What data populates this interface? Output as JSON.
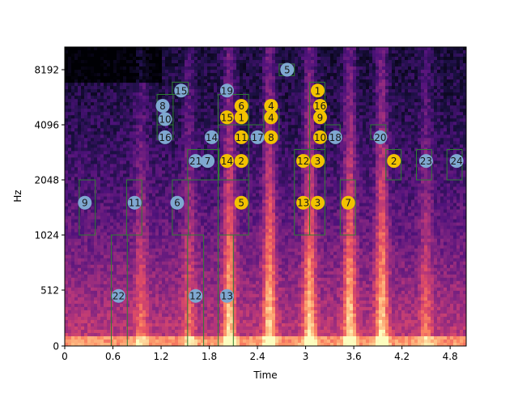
{
  "chart_data": {
    "type": "heatmap",
    "title": "",
    "xlabel": "Time",
    "ylabel": "Hz",
    "xlim": [
      0,
      5.0
    ],
    "y_scale": "log2 (from 0)",
    "x_ticks": [
      {
        "value": 0,
        "label": "0"
      },
      {
        "value": 0.6,
        "label": "0.6"
      },
      {
        "value": 1.2,
        "label": "1.2"
      },
      {
        "value": 1.8,
        "label": "1.8"
      },
      {
        "value": 2.4,
        "label": "2.4"
      },
      {
        "value": 3.0,
        "label": "3"
      },
      {
        "value": 3.6,
        "label": "3.6"
      },
      {
        "value": 4.2,
        "label": "4.2"
      },
      {
        "value": 4.8,
        "label": "4.8"
      }
    ],
    "y_ticks": [
      {
        "value": 0,
        "label": "0"
      },
      {
        "value": 512,
        "label": "512"
      },
      {
        "value": 1024,
        "label": "1024"
      },
      {
        "value": 2048,
        "label": "2048"
      },
      {
        "value": 4096,
        "label": "4096"
      },
      {
        "value": 8192,
        "label": "8192"
      }
    ],
    "colormap": "magma",
    "grid": false,
    "box_color": "#2e7d32",
    "marker_colors": {
      "blue": "#7fa8d1",
      "yellow": "#f2c200"
    },
    "boxes": [
      {
        "t0": 0.18,
        "t1": 0.38,
        "f0": 1024,
        "f1": 2048
      },
      {
        "t0": 0.58,
        "t1": 0.78,
        "f0": 0,
        "f1": 1024
      },
      {
        "t0": 0.77,
        "t1": 0.96,
        "f0": 1024,
        "f1": 2048
      },
      {
        "t0": 1.15,
        "t1": 1.35,
        "f0": 4096,
        "f1": 6000
      },
      {
        "t0": 1.15,
        "t1": 1.35,
        "f0": 3400,
        "f1": 4096
      },
      {
        "t0": 1.34,
        "t1": 1.54,
        "f0": 1024,
        "f1": 2048
      },
      {
        "t0": 1.34,
        "t1": 1.54,
        "f0": 6000,
        "f1": 7000
      },
      {
        "t0": 1.53,
        "t1": 1.73,
        "f0": 0,
        "f1": 1024
      },
      {
        "t0": 1.53,
        "t1": 1.92,
        "f0": 2048,
        "f1": 3000
      },
      {
        "t0": 1.91,
        "t1": 2.1,
        "f0": 0,
        "f1": 1024
      },
      {
        "t0": 1.91,
        "t1": 2.29,
        "f0": 1024,
        "f1": 2048
      },
      {
        "t0": 1.91,
        "t1": 2.29,
        "f0": 2048,
        "f1": 4096
      },
      {
        "t0": 1.91,
        "t1": 2.29,
        "f0": 4096,
        "f1": 6000
      },
      {
        "t0": 2.29,
        "t1": 2.48,
        "f0": 3400,
        "f1": 4096
      },
      {
        "t0": 2.48,
        "t1": 2.67,
        "f0": 3400,
        "f1": 5000
      },
      {
        "t0": 2.67,
        "t1": 2.86,
        "f0": 7600,
        "f1": 8800
      },
      {
        "t0": 2.86,
        "t1": 3.05,
        "f0": 1024,
        "f1": 3000
      },
      {
        "t0": 3.05,
        "t1": 3.24,
        "f0": 1024,
        "f1": 3000
      },
      {
        "t0": 3.05,
        "t1": 3.24,
        "f0": 3000,
        "f1": 7000
      },
      {
        "t0": 3.24,
        "t1": 3.43,
        "f0": 3400,
        "f1": 4096
      },
      {
        "t0": 3.43,
        "t1": 3.62,
        "f0": 1024,
        "f1": 2048
      },
      {
        "t0": 3.81,
        "t1": 4.0,
        "f0": 3400,
        "f1": 4096
      },
      {
        "t0": 4.0,
        "t1": 4.19,
        "f0": 2048,
        "f1": 3000
      },
      {
        "t0": 4.38,
        "t1": 4.57,
        "f0": 2048,
        "f1": 3000
      },
      {
        "t0": 4.76,
        "t1": 4.95,
        "f0": 2048,
        "f1": 3000
      }
    ],
    "markers": [
      {
        "label": "9",
        "t": 0.25,
        "f": 1536,
        "color": "blue"
      },
      {
        "label": "22",
        "t": 0.67,
        "f": 384,
        "color": "blue"
      },
      {
        "label": "11",
        "t": 0.87,
        "f": 1536,
        "color": "blue"
      },
      {
        "label": "8",
        "t": 1.22,
        "f": 5200,
        "color": "blue"
      },
      {
        "label": "10",
        "t": 1.25,
        "f": 4400,
        "color": "blue"
      },
      {
        "label": "16",
        "t": 1.25,
        "f": 3500,
        "color": "blue"
      },
      {
        "label": "15",
        "t": 1.45,
        "f": 6300,
        "color": "blue"
      },
      {
        "label": "6",
        "t": 1.4,
        "f": 1536,
        "color": "blue"
      },
      {
        "label": "21",
        "t": 1.63,
        "f": 2600,
        "color": "blue"
      },
      {
        "label": "7",
        "t": 1.78,
        "f": 2600,
        "color": "blue"
      },
      {
        "label": "12",
        "t": 1.63,
        "f": 384,
        "color": "blue"
      },
      {
        "label": "14",
        "t": 1.83,
        "f": 3500,
        "color": "blue"
      },
      {
        "label": "19",
        "t": 2.02,
        "f": 6300,
        "color": "blue"
      },
      {
        "label": "13",
        "t": 2.02,
        "f": 384,
        "color": "blue"
      },
      {
        "label": "15",
        "t": 2.02,
        "f": 4500,
        "color": "yellow"
      },
      {
        "label": "14",
        "t": 2.02,
        "f": 2600,
        "color": "yellow"
      },
      {
        "label": "6",
        "t": 2.2,
        "f": 5200,
        "color": "yellow"
      },
      {
        "label": "1",
        "t": 2.2,
        "f": 4500,
        "color": "yellow"
      },
      {
        "label": "11",
        "t": 2.2,
        "f": 3500,
        "color": "yellow"
      },
      {
        "label": "2",
        "t": 2.2,
        "f": 2600,
        "color": "yellow"
      },
      {
        "label": "5",
        "t": 2.2,
        "f": 1536,
        "color": "yellow"
      },
      {
        "label": "17",
        "t": 2.4,
        "f": 3500,
        "color": "blue"
      },
      {
        "label": "4",
        "t": 2.57,
        "f": 5200,
        "color": "yellow"
      },
      {
        "label": "4",
        "t": 2.57,
        "f": 4500,
        "color": "yellow"
      },
      {
        "label": "8",
        "t": 2.57,
        "f": 3500,
        "color": "yellow"
      },
      {
        "label": "5",
        "t": 2.77,
        "f": 8192,
        "color": "blue"
      },
      {
        "label": "12",
        "t": 2.97,
        "f": 2600,
        "color": "yellow"
      },
      {
        "label": "13",
        "t": 2.97,
        "f": 1536,
        "color": "yellow"
      },
      {
        "label": "3",
        "t": 3.15,
        "f": 2600,
        "color": "yellow"
      },
      {
        "label": "3",
        "t": 3.15,
        "f": 1536,
        "color": "yellow"
      },
      {
        "label": "1",
        "t": 3.15,
        "f": 6300,
        "color": "yellow"
      },
      {
        "label": "16",
        "t": 3.18,
        "f": 5200,
        "color": "yellow"
      },
      {
        "label": "9",
        "t": 3.18,
        "f": 4500,
        "color": "yellow"
      },
      {
        "label": "10",
        "t": 3.18,
        "f": 3500,
        "color": "yellow"
      },
      {
        "label": "18",
        "t": 3.37,
        "f": 3500,
        "color": "blue"
      },
      {
        "label": "7",
        "t": 3.53,
        "f": 1536,
        "color": "yellow"
      },
      {
        "label": "20",
        "t": 3.93,
        "f": 3500,
        "color": "blue"
      },
      {
        "label": "2",
        "t": 4.1,
        "f": 2600,
        "color": "yellow"
      },
      {
        "label": "23",
        "t": 4.5,
        "f": 2600,
        "color": "blue"
      },
      {
        "label": "24",
        "t": 4.88,
        "f": 2600,
        "color": "blue"
      }
    ]
  }
}
